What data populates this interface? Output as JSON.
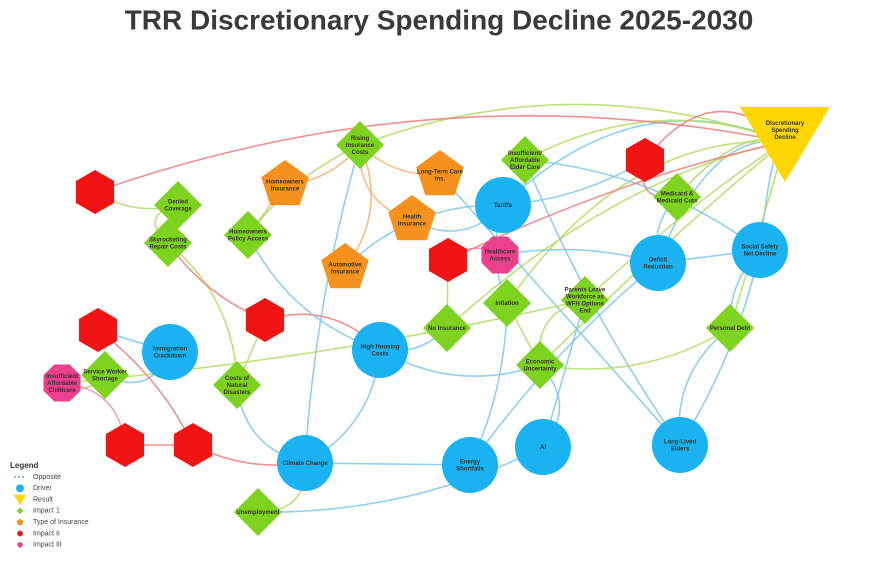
{
  "title": "TRR Discretionary Spending Decline 2025-2030",
  "nodes": [
    {
      "label": "Discretionary Spending Decline",
      "kind": "result"
    },
    {
      "label": "Rising Insurance Costs",
      "kind": "impact1"
    },
    {
      "label": "Insufficient/ Affordable Elder Care",
      "kind": "impact1"
    },
    {
      "label": "Homeowners Insurance",
      "kind": "insurance"
    },
    {
      "label": "Long-Term Care Ins.",
      "kind": "insurance"
    },
    {
      "label": "Tariffs",
      "kind": "driver"
    },
    {
      "label": "Denied Coverage",
      "kind": "impact1"
    },
    {
      "label": "Medicard & Medicaid Cuts",
      "kind": "impact1"
    },
    {
      "label": "Homeowners Policy Access",
      "kind": "impact1"
    },
    {
      "label": "Skyrocketing Repair Costs",
      "kind": "impact1"
    },
    {
      "label": "Health Insurance",
      "kind": "insurance"
    },
    {
      "label": "Healthcare Access",
      "kind": "impact3"
    },
    {
      "label": "Deficit Reduction",
      "kind": "driver"
    },
    {
      "label": "Social Safety Net Decline",
      "kind": "driver"
    },
    {
      "label": "Automotive Insurance",
      "kind": "insurance"
    },
    {
      "label": "Inflation",
      "kind": "impact1"
    },
    {
      "label": "Parents Leave Workforce as WFH Options End",
      "kind": "impact1"
    },
    {
      "label": "No Insurance",
      "kind": "impact1"
    },
    {
      "label": "Personal Debt",
      "kind": "impact1"
    },
    {
      "label": "Immigration Crackdown",
      "kind": "driver"
    },
    {
      "label": "High Housing Costs",
      "kind": "driver"
    },
    {
      "label": "Economic Uncertainty",
      "kind": "impact1"
    },
    {
      "label": "Service Worker Shortage",
      "kind": "impact1"
    },
    {
      "label": "Insufficient Affordable Childcare",
      "kind": "impact3"
    },
    {
      "label": "Costs of Natural Disasters",
      "kind": "impact1"
    },
    {
      "label": "Climate Change",
      "kind": "driver"
    },
    {
      "label": "AI",
      "kind": "driver"
    },
    {
      "label": "Energy Shortfalls",
      "kind": "driver"
    },
    {
      "label": "Long-Lived Elders",
      "kind": "driver"
    },
    {
      "label": "Unemployment",
      "kind": "impact1"
    },
    {
      "kind": "impact2"
    },
    {
      "kind": "impact2"
    },
    {
      "kind": "impact2"
    },
    {
      "kind": "impact2"
    },
    {
      "kind": "impact2"
    },
    {
      "kind": "impact2"
    },
    {
      "kind": "impact2"
    }
  ],
  "legend": {
    "title": "Legend",
    "items": [
      "Opposite",
      "Driver",
      "Result",
      "Impact 1",
      "Type of Insurance",
      "Impact II",
      "Impact III"
    ]
  }
}
